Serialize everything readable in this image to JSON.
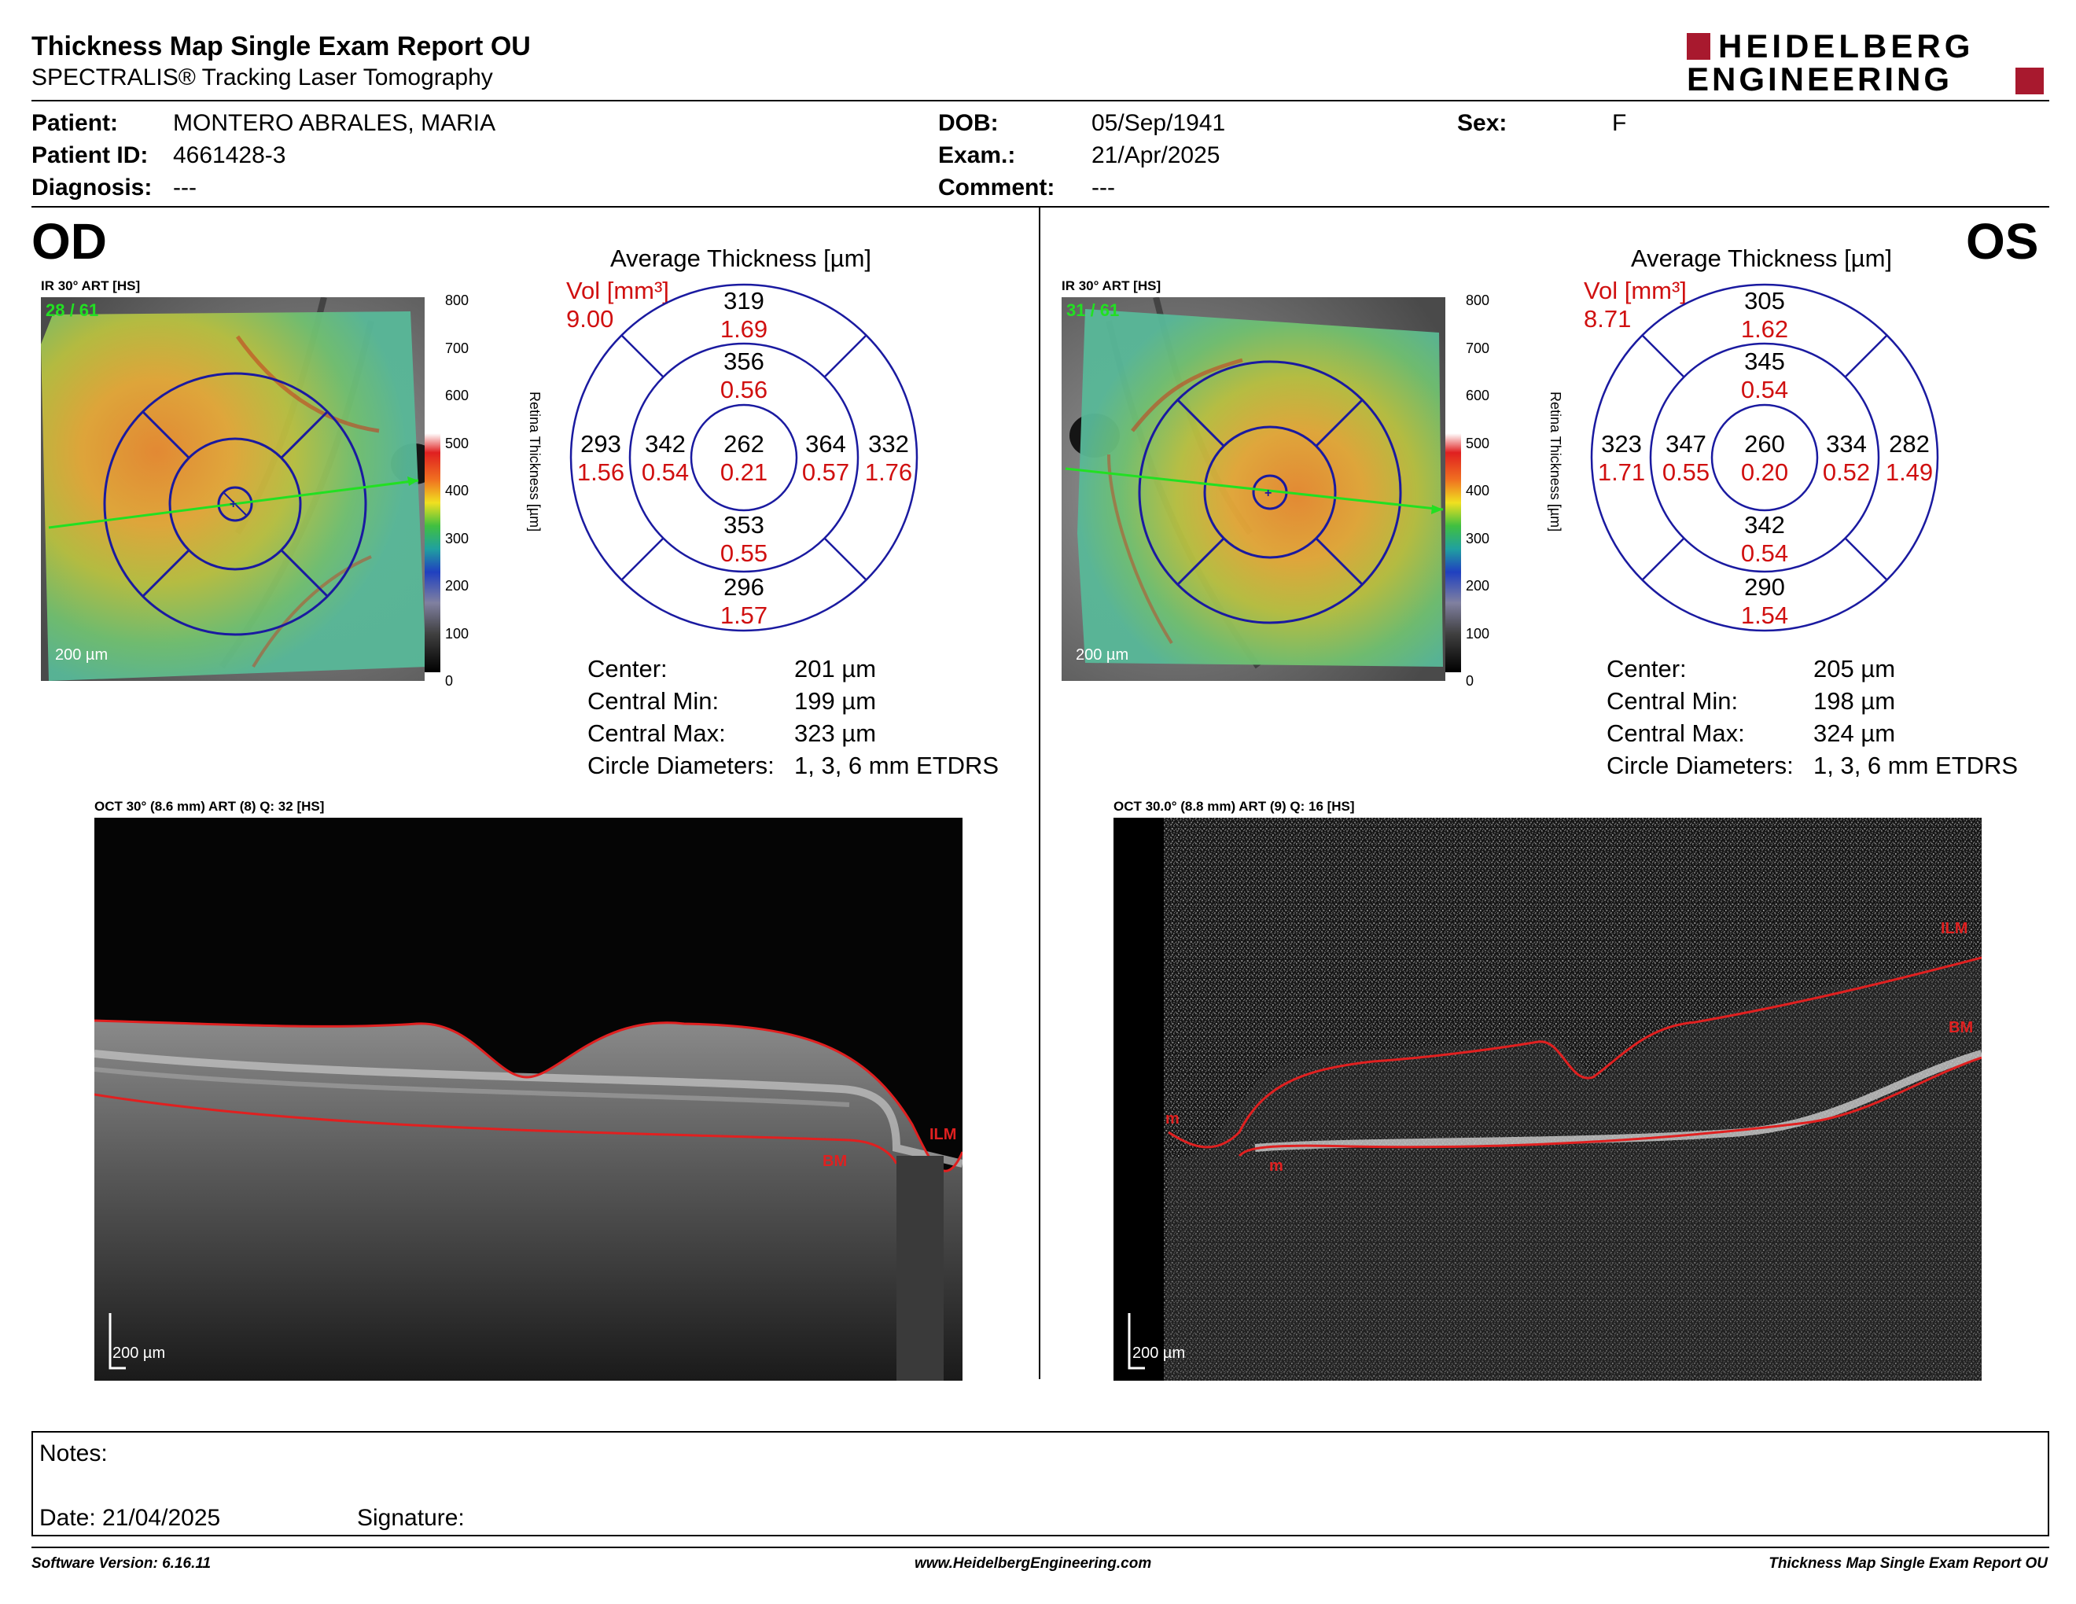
{
  "report": {
    "title": "Thickness Map Single Exam Report OU",
    "subtitle": "SPECTRALIS® Tracking Laser Tomography",
    "logo_line1": "HEIDELBERG",
    "logo_line2": "ENGINEERING",
    "brand_color": "#a8192e"
  },
  "patient": {
    "patient_label": "Patient:",
    "patient_value": "MONTERO ABRALES, MARIA",
    "id_label": "Patient ID:",
    "id_value": "4661428-3",
    "diag_label": "Diagnosis:",
    "diag_value": "---",
    "dob_label": "DOB:",
    "dob_value": "05/Sep/1941",
    "exam_label": "Exam.:",
    "exam_value": "21/Apr/2025",
    "comment_label": "Comment:",
    "comment_value": "---",
    "sex_label": "Sex:",
    "sex_value": "F"
  },
  "od": {
    "eye": "OD",
    "ir_label": "IR 30° ART [HS]",
    "quality": "28 / 61",
    "scale": "200 µm",
    "avg_title": "Average Thickness [µm]",
    "vol_label": "Vol [mm³]",
    "vol_total": "9.00",
    "etdrs": {
      "center": {
        "t": "262",
        "v": "0.21"
      },
      "inner_sup": {
        "t": "356",
        "v": "0.56"
      },
      "inner_inf": {
        "t": "353",
        "v": "0.55"
      },
      "inner_left": {
        "t": "342",
        "v": "0.54"
      },
      "inner_right": {
        "t": "364",
        "v": "0.57"
      },
      "outer_sup": {
        "t": "319",
        "v": "1.69"
      },
      "outer_inf": {
        "t": "296",
        "v": "1.57"
      },
      "outer_left": {
        "t": "293",
        "v": "1.56"
      },
      "outer_right": {
        "t": "332",
        "v": "1.76"
      }
    },
    "stats": {
      "center_label": "Center:",
      "center_value": "201 µm",
      "min_label": "Central Min:",
      "min_value": "199 µm",
      "max_label": "Central Max:",
      "max_value": "323 µm",
      "circ_label": "Circle Diameters:",
      "circ_value": "1, 3, 6 mm ETDRS"
    },
    "oct_label": "OCT 30° (8.6 mm) ART (8) Q: 32 [HS]",
    "oct_scale": "200 µm",
    "ilm": "ILM",
    "bm": "BM"
  },
  "os": {
    "eye": "OS",
    "ir_label": "IR 30° ART [HS]",
    "quality": "31 / 61",
    "scale": "200 µm",
    "avg_title": "Average Thickness [µm]",
    "vol_label": "Vol [mm³]",
    "vol_total": "8.71",
    "etdrs": {
      "center": {
        "t": "260",
        "v": "0.20"
      },
      "inner_sup": {
        "t": "345",
        "v": "0.54"
      },
      "inner_inf": {
        "t": "342",
        "v": "0.54"
      },
      "inner_left": {
        "t": "347",
        "v": "0.55"
      },
      "inner_right": {
        "t": "334",
        "v": "0.52"
      },
      "outer_sup": {
        "t": "305",
        "v": "1.62"
      },
      "outer_inf": {
        "t": "290",
        "v": "1.54"
      },
      "outer_left": {
        "t": "323",
        "v": "1.71"
      },
      "outer_right": {
        "t": "282",
        "v": "1.49"
      }
    },
    "stats": {
      "center_label": "Center:",
      "center_value": "205 µm",
      "min_label": "Central Min:",
      "min_value": "198 µm",
      "max_label": "Central Max:",
      "max_value": "324 µm",
      "circ_label": "Circle Diameters:",
      "circ_value": "1, 3, 6 mm ETDRS"
    },
    "oct_label": "OCT 30.0° (8.8 mm) ART (9) Q: 16 [HS]",
    "oct_scale": "200 µm",
    "ilm": "ILM",
    "bm": "BM",
    "m_label": "m"
  },
  "colorbar": {
    "ticks": [
      "800",
      "700",
      "600",
      "500",
      "400",
      "300",
      "200",
      "100",
      "0"
    ],
    "title": "Retina Thickness [µm]"
  },
  "notes": {
    "label": "Notes:",
    "date_label": "Date: 21/04/2025",
    "signature_label": "Signature:"
  },
  "footer": {
    "software": "Software Version: 6.16.11",
    "website": "www.HeidelbergEngineering.com",
    "report": "Thickness Map Single Exam Report OU"
  },
  "colors": {
    "etdrs_ring": "#1a1aa0",
    "volume_red": "#d01010",
    "oct_line": "#e02020",
    "quality_green": "#22e022"
  }
}
